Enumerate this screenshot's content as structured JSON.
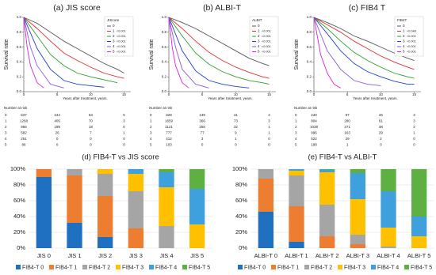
{
  "chart_data": [
    {
      "type": "line",
      "title": "(a) JIS score",
      "ylabel": "Survival rate",
      "xlabel": "Years after treatment, years.",
      "xlim": [
        0,
        16
      ],
      "ylim": [
        0,
        1
      ],
      "xticks": [
        0,
        5,
        10,
        15
      ],
      "yticks": [
        {
          "value": 0,
          "label": "0.0"
        },
        {
          "value": 0.2,
          "label": "0.2"
        },
        {
          "value": 0.4,
          "label": "0.4"
        },
        {
          "value": 0.6,
          "label": "0.6"
        },
        {
          "value": 0.8,
          "label": "0.8"
        },
        {
          "value": 1,
          "label": "1.0"
        }
      ],
      "legend_title": "JIScore",
      "series": [
        {
          "name": "0",
          "color": "#555555",
          "x": [
            0,
            2,
            4,
            6,
            8,
            10,
            12,
            14,
            15
          ],
          "values": [
            1,
            0.92,
            0.8,
            0.68,
            0.58,
            0.48,
            0.38,
            0.3,
            0.25
          ]
        },
        {
          "name": "1",
          "color": "#e03030",
          "p_value": "<0.001",
          "x": [
            0,
            2,
            4,
            6,
            8,
            10,
            12,
            14,
            15
          ],
          "values": [
            1,
            0.85,
            0.68,
            0.52,
            0.42,
            0.33,
            0.25,
            0.2,
            0.18
          ]
        },
        {
          "name": "2",
          "color": "#2aa02a",
          "p_value": "<0.001",
          "x": [
            0,
            2,
            4,
            6,
            8,
            10,
            12,
            14
          ],
          "values": [
            1,
            0.75,
            0.5,
            0.35,
            0.25,
            0.2,
            0.16,
            0.12
          ]
        },
        {
          "name": "3",
          "color": "#2040d0",
          "p_value": "<0.001",
          "x": [
            0,
            2,
            4,
            6,
            8,
            10,
            12
          ],
          "values": [
            1,
            0.58,
            0.3,
            0.15,
            0.1,
            0.08,
            0.06
          ]
        },
        {
          "name": "4",
          "color": "#8a5ae0",
          "p_value": "<0.001",
          "x": [
            0,
            1,
            2,
            4,
            6
          ],
          "values": [
            1,
            0.6,
            0.35,
            0.1,
            0.05
          ]
        },
        {
          "name": "5",
          "color": "#e020e0",
          "p_value": "<0.001",
          "x": [
            0,
            0.5,
            1,
            2,
            3
          ],
          "values": [
            1,
            0.6,
            0.35,
            0.12,
            0.05
          ]
        }
      ],
      "risk": {
        "title": "Number at risk",
        "rows": [
          {
            "label": "0",
            "values": [
              637,
              244,
              63,
              5
            ]
          },
          {
            "label": "1",
            "values": [
              1268,
              405,
              70,
              3
            ]
          },
          {
            "label": "2",
            "values": [
              956,
              198,
              18,
              0
            ]
          },
          {
            "label": "3",
            "values": [
              582,
              26,
              7,
              1
            ]
          },
          {
            "label": "4",
            "values": [
              251,
              0,
              0,
              0
            ]
          },
          {
            "label": "5",
            "values": [
              86,
              0,
              0,
              0
            ]
          }
        ]
      }
    },
    {
      "type": "line",
      "title": "(b) ALBI-T",
      "ylabel": "Survival rate",
      "xlabel": "Years after treatment, years.",
      "xlim": [
        0,
        16
      ],
      "ylim": [
        0,
        1
      ],
      "xticks": [
        0,
        5,
        10,
        15
      ],
      "yticks": [
        {
          "value": 0,
          "label": "0.0"
        },
        {
          "value": 0.2,
          "label": "0.2"
        },
        {
          "value": 0.4,
          "label": "0.4"
        },
        {
          "value": 0.6,
          "label": "0.6"
        },
        {
          "value": 0.8,
          "label": "0.8"
        },
        {
          "value": 1,
          "label": "1.0"
        }
      ],
      "legend_title": "ALBIT",
      "series": [
        {
          "name": "0",
          "color": "#555555",
          "x": [
            0,
            2,
            4,
            6,
            8,
            10,
            12,
            14,
            15
          ],
          "values": [
            1,
            0.93,
            0.85,
            0.75,
            0.65,
            0.55,
            0.45,
            0.38,
            0.35
          ]
        },
        {
          "name": "1",
          "color": "#e03030",
          "p_value": "<0.001",
          "x": [
            0,
            2,
            4,
            6,
            8,
            10,
            12,
            14,
            15
          ],
          "values": [
            1,
            0.85,
            0.68,
            0.53,
            0.42,
            0.33,
            0.26,
            0.2,
            0.18
          ]
        },
        {
          "name": "2",
          "color": "#2aa02a",
          "p_value": "<0.001",
          "x": [
            0,
            2,
            4,
            6,
            8,
            10,
            12,
            14,
            15
          ],
          "values": [
            1,
            0.75,
            0.52,
            0.37,
            0.27,
            0.2,
            0.15,
            0.12,
            0.1
          ]
        },
        {
          "name": "3",
          "color": "#2040d0",
          "p_value": "<0.001",
          "x": [
            0,
            2,
            4,
            6,
            8,
            10,
            12
          ],
          "values": [
            1,
            0.55,
            0.28,
            0.15,
            0.1,
            0.07,
            0.05
          ]
        },
        {
          "name": "4",
          "color": "#8a5ae0",
          "p_value": "<0.001",
          "x": [
            0,
            1,
            2,
            4,
            6
          ],
          "values": [
            1,
            0.6,
            0.3,
            0.1,
            0.05
          ]
        },
        {
          "name": "5",
          "color": "#e020e0",
          "p_value": "<0.001",
          "x": [
            0,
            0.5,
            1,
            2,
            3
          ],
          "values": [
            1,
            0.6,
            0.35,
            0.12,
            0.05
          ]
        }
      ],
      "risk": {
        "title": "Number at risk",
        "rows": [
          {
            "label": "0",
            "values": [
              328,
              139,
              41,
              4
            ]
          },
          {
            "label": "1",
            "values": [
              1659,
              366,
              73,
              3
            ]
          },
          {
            "label": "2",
            "values": [
              1121,
              256,
              32,
              1
            ]
          },
          {
            "label": "3",
            "values": [
              777,
              77,
              9,
              1
            ]
          },
          {
            "label": "4",
            "values": [
              412,
              3,
              1,
              0
            ]
          },
          {
            "label": "5",
            "values": [
              103,
              0,
              0,
              0
            ]
          }
        ]
      }
    },
    {
      "type": "line",
      "title": "(c) FIB4 T",
      "ylabel": "Survival rate",
      "xlabel": "Years after treatment, years.",
      "xlim": [
        0,
        16
      ],
      "ylim": [
        0,
        1
      ],
      "xticks": [
        0,
        5,
        10,
        15
      ],
      "yticks": [
        {
          "value": 0,
          "label": "0.0"
        },
        {
          "value": 0.2,
          "label": "0.2"
        },
        {
          "value": 0.4,
          "label": "0.4"
        },
        {
          "value": 0.6,
          "label": "0.6"
        },
        {
          "value": 0.8,
          "label": "0.8"
        },
        {
          "value": 1,
          "label": "1.0"
        }
      ],
      "legend_title": "FIB4T",
      "series": [
        {
          "name": "0",
          "color": "#555555",
          "x": [
            0,
            2,
            4,
            6,
            8,
            10,
            12,
            14,
            15
          ],
          "values": [
            1,
            0.93,
            0.85,
            0.75,
            0.68,
            0.6,
            0.52,
            0.45,
            0.42
          ]
        },
        {
          "name": "1",
          "color": "#e03030",
          "p_value": "<0.048",
          "x": [
            0,
            2,
            4,
            6,
            8,
            10,
            12,
            14,
            15
          ],
          "values": [
            1,
            0.9,
            0.8,
            0.68,
            0.58,
            0.48,
            0.4,
            0.33,
            0.3
          ]
        },
        {
          "name": "2",
          "color": "#2aa02a",
          "p_value": "<0.001",
          "x": [
            0,
            2,
            4,
            6,
            8,
            10,
            12,
            14,
            15
          ],
          "values": [
            1,
            0.85,
            0.68,
            0.53,
            0.42,
            0.33,
            0.25,
            0.2,
            0.18
          ]
        },
        {
          "name": "3",
          "color": "#2040d0",
          "p_value": "<0.001",
          "x": [
            0,
            2,
            4,
            6,
            8,
            10,
            12,
            14,
            15
          ],
          "values": [
            1,
            0.78,
            0.55,
            0.38,
            0.27,
            0.2,
            0.14,
            0.1,
            0.1
          ]
        },
        {
          "name": "4",
          "color": "#8a5ae0",
          "p_value": "<0.001",
          "x": [
            0,
            2,
            4,
            6,
            8,
            10
          ],
          "values": [
            1,
            0.55,
            0.3,
            0.15,
            0.1,
            0.08
          ]
        },
        {
          "name": "5",
          "color": "#e020e0",
          "p_value": "<0.001",
          "x": [
            0,
            1,
            2,
            3,
            4
          ],
          "values": [
            1,
            0.5,
            0.25,
            0.1,
            0.05
          ]
        }
      ],
      "risk": {
        "title": "Number at risk",
        "rows": [
          {
            "label": "0",
            "values": [
              240,
              97,
              26,
              3
            ]
          },
          {
            "label": "1",
            "values": [
              804,
              280,
              61,
              3
            ]
          },
          {
            "label": "2",
            "values": [
              1038,
              271,
              38,
              2
            ]
          },
          {
            "label": "3",
            "values": [
              996,
              163,
              29,
              1
            ]
          },
          {
            "label": "4",
            "values": [
              522,
              29,
              2,
              0
            ]
          },
          {
            "label": "5",
            "values": [
              198,
              1,
              0,
              0
            ]
          }
        ]
      }
    },
    {
      "type": "bar",
      "stacked": true,
      "title": "(d) FIB4-T vs JIS score",
      "categories": [
        "JIS 0",
        "JIS 1",
        "JIS 2",
        "JIS 3",
        "JIS 4",
        "JIS 5"
      ],
      "ylim": [
        0,
        100
      ],
      "grid": true,
      "legend": "bottom",
      "yticks": [
        {
          "value": 0,
          "label": "0%"
        },
        {
          "value": 20,
          "label": "20%"
        },
        {
          "value": 40,
          "label": "40%"
        },
        {
          "value": 60,
          "label": "60%"
        },
        {
          "value": 80,
          "label": "80%"
        },
        {
          "value": 100,
          "label": "100%"
        }
      ],
      "series": [
        {
          "name": "FIB4-T 0",
          "color": "#1f70c1",
          "values": [
            90,
            32,
            14,
            0,
            0,
            0
          ]
        },
        {
          "name": "FIB4-T 1",
          "color": "#ed7d31",
          "values": [
            10,
            60,
            52,
            25,
            0,
            0
          ]
        },
        {
          "name": "FIB4-T 2",
          "color": "#a5a5a5",
          "values": [
            0,
            8,
            28,
            47,
            28,
            0
          ]
        },
        {
          "name": "FIB4-T 3",
          "color": "#ffc000",
          "values": [
            0,
            0,
            6,
            22,
            49,
            30
          ]
        },
        {
          "name": "FIB4-T 4",
          "color": "#3ea0dc",
          "values": [
            0,
            0,
            0,
            6,
            19,
            45
          ]
        },
        {
          "name": "FIB4-T 5",
          "color": "#5fb043",
          "values": [
            0,
            0,
            0,
            0,
            4,
            25
          ]
        }
      ]
    },
    {
      "type": "bar",
      "stacked": true,
      "title": "(e) FIB4-T vs ALBI-T",
      "categories": [
        "ALBI-T 0",
        "ALBI-T 1",
        "ALBI-T 2",
        "ALBI-T 3",
        "ALBI-T 4",
        "ALBI-T 5"
      ],
      "ylim": [
        0,
        100
      ],
      "grid": true,
      "legend": "bottom",
      "yticks": [
        {
          "value": 0,
          "label": "0%"
        },
        {
          "value": 20,
          "label": "20%"
        },
        {
          "value": 40,
          "label": "40%"
        },
        {
          "value": 60,
          "label": "60%"
        },
        {
          "value": 80,
          "label": "80%"
        },
        {
          "value": 100,
          "label": "100%"
        }
      ],
      "series": [
        {
          "name": "FIB4-T 0",
          "color": "#1f70c1",
          "values": [
            46,
            8,
            0,
            0,
            0,
            0
          ]
        },
        {
          "name": "FIB4-T 1",
          "color": "#ed7d31",
          "values": [
            42,
            45,
            15,
            5,
            0,
            0
          ]
        },
        {
          "name": "FIB4-T 2",
          "color": "#a5a5a5",
          "values": [
            12,
            39,
            40,
            12,
            2,
            0
          ]
        },
        {
          "name": "FIB4-T 3",
          "color": "#ffc000",
          "values": [
            0,
            6,
            41,
            45,
            24,
            15
          ]
        },
        {
          "name": "FIB4-T 4",
          "color": "#3ea0dc",
          "values": [
            0,
            2,
            3,
            33,
            46,
            25
          ]
        },
        {
          "name": "FIB4-T 5",
          "color": "#5fb043",
          "values": [
            0,
            0,
            1,
            5,
            28,
            60
          ]
        }
      ]
    }
  ]
}
